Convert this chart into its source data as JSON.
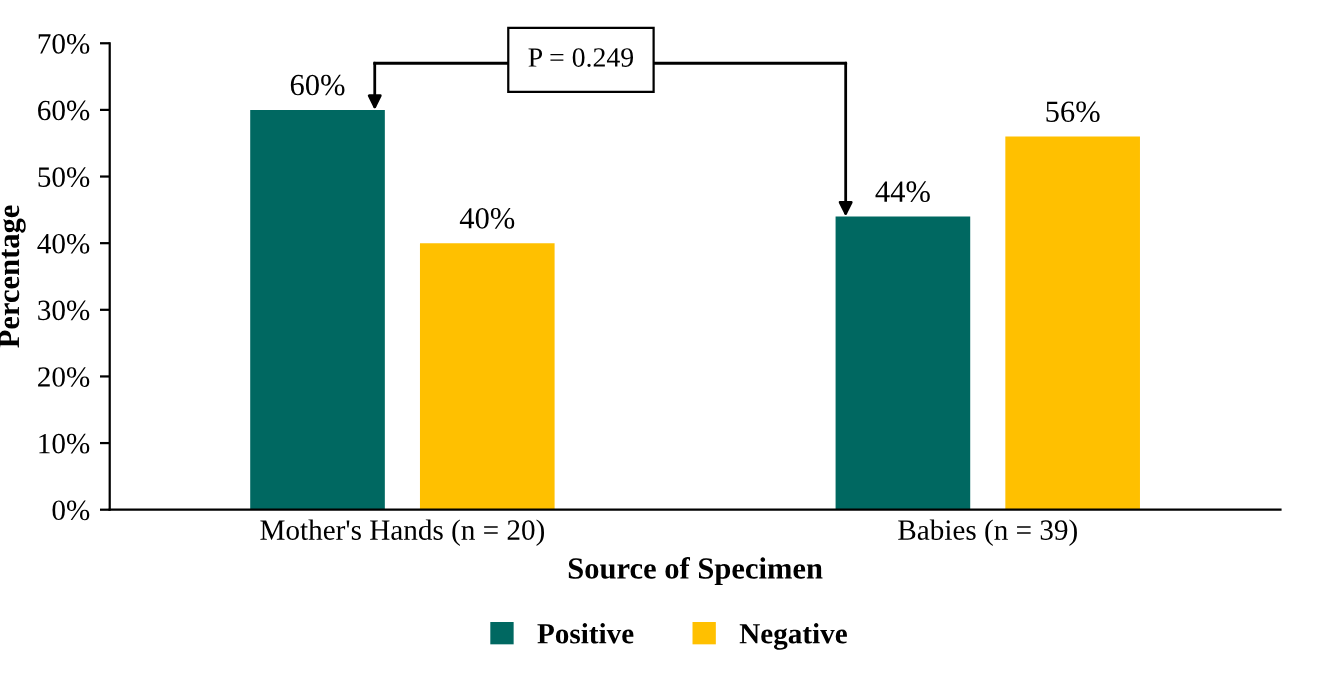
{
  "chart_data": {
    "type": "bar",
    "xlabel": "Source of Specimen",
    "ylabel": "Percentage",
    "categories": [
      "Mother's Hands (n = 20)",
      "Babies (n = 39)"
    ],
    "series": [
      {
        "name": "Positive",
        "color": "#006861",
        "values": [
          60,
          44
        ],
        "value_labels": [
          "60%",
          "44%"
        ]
      },
      {
        "name": "Negative",
        "color": "#ffc000",
        "values": [
          40,
          56
        ],
        "value_labels": [
          "40%",
          "56%"
        ]
      }
    ],
    "ylim": [
      0,
      70
    ],
    "yticks": [
      {
        "value": 0,
        "label": "0%"
      },
      {
        "value": 10,
        "label": "10%"
      },
      {
        "value": 20,
        "label": "20%"
      },
      {
        "value": 30,
        "label": "30%"
      },
      {
        "value": 40,
        "label": "40%"
      },
      {
        "value": 50,
        "label": "50%"
      },
      {
        "value": 60,
        "label": "60%"
      },
      {
        "value": 70,
        "label": "70%"
      }
    ],
    "annotations": [
      "P = 0.249"
    ],
    "legend": "bottom",
    "grid": false
  }
}
